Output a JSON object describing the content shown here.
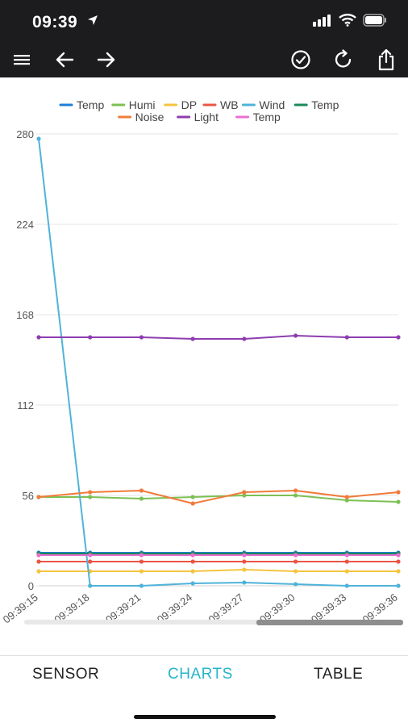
{
  "status_bar": {
    "time": "09:39"
  },
  "toolbar": {
    "icons": [
      "menu-icon",
      "back-arrow-icon",
      "forward-arrow-icon",
      "check-circle-icon",
      "refresh-icon",
      "share-icon"
    ]
  },
  "tabs": [
    {
      "label": "SENSOR",
      "active": false
    },
    {
      "label": "CHARTS",
      "active": true
    },
    {
      "label": "TABLE",
      "active": false
    }
  ],
  "colors": {
    "topbar": "#1c1c1e",
    "accent": "#26b5c9"
  },
  "chart_data": {
    "type": "line",
    "title": "",
    "xlabel": "",
    "ylabel": "",
    "ylim": [
      0,
      280
    ],
    "yticks": [
      0,
      56,
      112,
      168,
      224,
      280
    ],
    "grid": true,
    "legend_position": "top-center",
    "x": [
      "09:39:15",
      "09:39:18",
      "09:39:21",
      "09:39:24",
      "09:39:27",
      "09:39:30",
      "09:39:33",
      "09:39:36"
    ],
    "series": [
      {
        "name": "Temp",
        "color": "#1e7fd8",
        "values": [
          20.5,
          20.5,
          20.5,
          20.5,
          20.5,
          20.5,
          20.5,
          20.5
        ]
      },
      {
        "name": "Humi",
        "color": "#7cc055",
        "values": [
          55,
          55,
          54,
          55,
          56,
          56,
          53,
          52
        ]
      },
      {
        "name": "DP",
        "color": "#f3c540",
        "values": [
          9,
          9,
          9,
          9,
          10,
          9,
          9,
          9
        ]
      },
      {
        "name": "WB",
        "color": "#ea5545",
        "values": [
          15,
          15,
          15,
          15,
          15,
          15,
          15,
          15
        ]
      },
      {
        "name": "Wind",
        "color": "#4fb3d9",
        "values": [
          277,
          0,
          0,
          1.5,
          2,
          1,
          0,
          0
        ]
      },
      {
        "name": "Temp",
        "color": "#1a8a5a",
        "values": [
          20,
          20,
          20,
          20,
          20,
          20,
          20,
          20
        ]
      },
      {
        "name": "Noise",
        "color": "#f07b3a",
        "values": [
          55,
          58,
          59,
          51,
          58,
          59,
          55,
          58
        ]
      },
      {
        "name": "Light",
        "color": "#8e3db0",
        "values": [
          154,
          154,
          154,
          153,
          153,
          155,
          154,
          154
        ]
      },
      {
        "name": "Temp",
        "color": "#e86fcf",
        "values": [
          19,
          19,
          19,
          19,
          19,
          19,
          19,
          19
        ]
      }
    ]
  }
}
